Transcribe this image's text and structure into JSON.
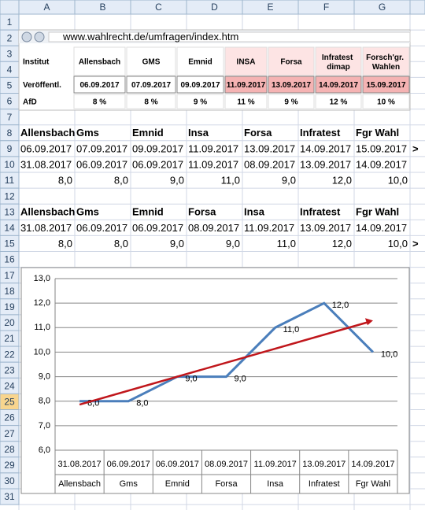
{
  "column_headers": [
    "A",
    "B",
    "C",
    "D",
    "E",
    "F",
    "G"
  ],
  "row_headers": [
    1,
    2,
    3,
    4,
    5,
    6,
    7,
    8,
    9,
    10,
    11,
    12,
    13,
    14,
    15,
    16,
    17,
    18,
    19,
    20,
    21,
    22,
    23,
    24,
    25,
    26,
    27,
    28,
    29,
    30,
    31
  ],
  "browser": {
    "url": "www.wahlrecht.de/umfragen/index.htm"
  },
  "poll_table": {
    "rows": [
      [
        "Institut",
        "Allensbach",
        "GMS",
        "Emnid",
        "INSA",
        "Forsa",
        "Infratest dimap",
        "Forsch'gr. Wahlen"
      ],
      [
        "Veröffentl.",
        "06.09.2017",
        "07.09.2017",
        "09.09.2017",
        "11.09.2017",
        "13.09.2017",
        "14.09.2017",
        "15.09.2017"
      ],
      [
        "AfD",
        "8 %",
        "8 %",
        "9 %",
        "11 %",
        "9 %",
        "12 %",
        "10 %"
      ]
    ]
  },
  "sheet": {
    "8": [
      "Allensbach",
      "Gms",
      "Emnid",
      "Insa",
      "Forsa",
      "Infratest",
      "Fgr Wahl"
    ],
    "9": [
      "06.09.2017",
      "07.09.2017",
      "09.09.2017",
      "11.09.2017",
      "13.09.2017",
      "14.09.2017",
      "15.09.2017",
      ">"
    ],
    "10": [
      "31.08.2017",
      "06.09.2017",
      "06.09.2017",
      "11.09.2017",
      "08.09.2017",
      "13.09.2017",
      "14.09.2017"
    ],
    "11": [
      "8,0",
      "8,0",
      "9,0",
      "11,0",
      "9,0",
      "12,0",
      "10,0"
    ],
    "13": [
      "Allensbach",
      "Gms",
      "Emnid",
      "Forsa",
      "Insa",
      "Infratest",
      "Fgr Wahl"
    ],
    "14": [
      "31.08.2017",
      "06.09.2017",
      "06.09.2017",
      "08.09.2017",
      "11.09.2017",
      "13.09.2017",
      "14.09.2017"
    ],
    "15": [
      "8,0",
      "8,0",
      "9,0",
      "9,0",
      "11,0",
      "12,0",
      "10,0",
      ">"
    ]
  },
  "chart_data": {
    "type": "line",
    "categories": [
      "31.08.2017",
      "06.09.2017",
      "06.09.2017",
      "08.09.2017",
      "11.09.2017",
      "13.09.2017",
      "14.09.2017"
    ],
    "category_groups": [
      "Allensbach",
      "Gms",
      "Emnid",
      "Forsa",
      "Insa",
      "Infratest",
      "Fgr Wahl"
    ],
    "series": [
      {
        "values": [
          8,
          8,
          9,
          9,
          11,
          12,
          10
        ],
        "value_labels": [
          "8,0",
          "8,0",
          "9,0",
          "9,0",
          "11,0",
          "12,0",
          "10,0"
        ],
        "color": "#4a7ebb"
      }
    ],
    "trendline": {
      "values": [
        7.86,
        11.29
      ],
      "color": "#c0161b"
    },
    "ylim": [
      6,
      13
    ],
    "yticks": [
      {
        "value": 6,
        "label": "6,0"
      },
      {
        "value": 7,
        "label": "7,0"
      },
      {
        "value": 8,
        "label": "8,0"
      },
      {
        "value": 9,
        "label": "9,0"
      },
      {
        "value": 10,
        "label": "10,0"
      },
      {
        "value": 11,
        "label": "11,0"
      },
      {
        "value": 12,
        "label": "12,0"
      },
      {
        "value": 13,
        "label": "13,0"
      }
    ],
    "grid": true
  }
}
